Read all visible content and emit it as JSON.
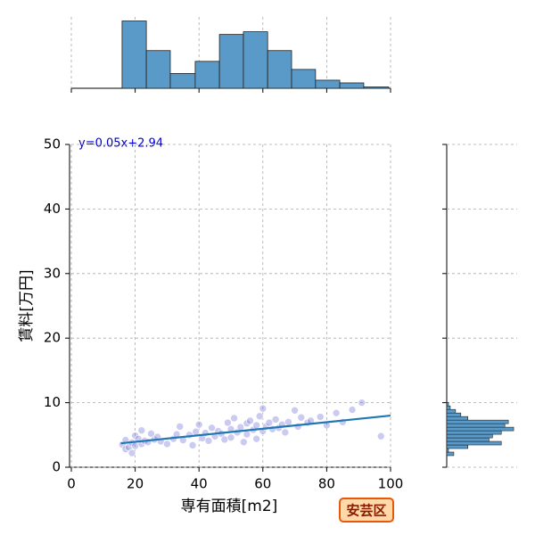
{
  "chart_data": {
    "type": "scatter",
    "xlabel": "専有面積[m2]",
    "ylabel": "賃料[万円]",
    "annotation": "y=0.05x+2.94",
    "badge": "安芸区",
    "xlim": [
      0,
      100
    ],
    "xticks": [
      0,
      20,
      40,
      60,
      80,
      100
    ],
    "ylim": [
      0,
      50
    ],
    "yticks": [
      0,
      10,
      20,
      30,
      40,
      50
    ],
    "grid": true,
    "color": "#6a6ad8",
    "x": [
      16,
      17,
      17,
      18,
      19,
      19,
      20,
      20,
      21,
      22,
      22,
      23,
      24,
      25,
      26,
      27,
      28,
      30,
      32,
      33,
      34,
      35,
      37,
      38,
      39,
      40,
      41,
      42,
      43,
      44,
      45,
      46,
      47,
      48,
      49,
      50,
      50,
      51,
      52,
      53,
      54,
      55,
      55,
      56,
      57,
      58,
      58,
      59,
      60,
      60,
      61,
      62,
      63,
      64,
      65,
      66,
      67,
      68,
      70,
      71,
      72,
      74,
      75,
      78,
      80,
      83,
      85,
      88,
      91,
      97
    ],
    "y": [
      3.5,
      2.8,
      4.2,
      3.1,
      2.2,
      3.8,
      4.9,
      3.3,
      4.4,
      5.7,
      3.6,
      4.1,
      3.9,
      5.2,
      4.3,
      4.7,
      4.0,
      3.6,
      4.4,
      5.1,
      6.3,
      4.2,
      5.0,
      3.4,
      5.5,
      6.6,
      4.5,
      5.3,
      4.1,
      6.1,
      4.8,
      5.6,
      5.2,
      4.3,
      6.9,
      5.9,
      4.6,
      7.6,
      5.4,
      6.2,
      3.9,
      6.8,
      5.1,
      7.2,
      5.8,
      4.4,
      6.5,
      7.9,
      5.6,
      9.1,
      6.3,
      6.9,
      5.9,
      7.4,
      6.1,
      6.6,
      5.4,
      7.0,
      8.8,
      6.3,
      7.7,
      6.9,
      7.2,
      7.8,
      6.5,
      8.4,
      7.0,
      8.9,
      10.0,
      4.8
    ],
    "regression_line": {
      "color": "#1f77b4",
      "x": [
        15.5,
        100
      ],
      "y": [
        3.7,
        8.0
      ]
    },
    "top_histogram": {
      "type": "histogram",
      "color": "#5a9ac9",
      "bins": [
        15.9,
        23.5,
        31.0,
        38.8,
        46.4,
        53.9,
        61.5,
        69.0,
        76.5,
        84.1,
        91.6,
        99.4
      ],
      "counts": [
        50,
        28,
        11,
        20,
        40,
        42,
        28,
        14,
        6,
        4,
        1
      ],
      "ylim": [
        0,
        53
      ]
    },
    "right_histogram": {
      "type": "histogram",
      "color": "#5a9ac9",
      "bins": [
        1.8,
        2.35,
        2.9,
        3.45,
        4.0,
        4.55,
        5.1,
        5.65,
        6.2,
        6.75,
        7.3,
        7.85,
        8.4,
        8.95,
        9.5,
        10.05
      ],
      "counts": [
        4,
        1,
        12,
        31,
        24,
        26,
        31,
        38,
        33,
        35,
        12,
        8,
        5,
        2,
        1
      ],
      "xlim": [
        0,
        40
      ]
    }
  }
}
